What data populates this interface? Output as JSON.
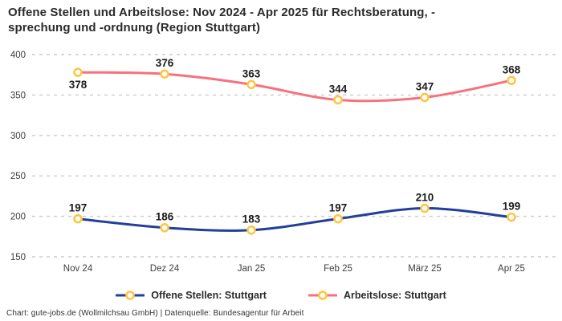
{
  "title": "Offene Stellen und Arbeitslose: Nov 2024 - Apr 2025 für Rechtsberatung, -\nsprechung und -ordnung (Region Stuttgart)",
  "footer": "Chart: gute-jobs.de (Wollmilchsau GmbH) | Datenquelle: Bundesagentur für Arbeit",
  "chart_data": {
    "type": "line",
    "title": "Offene Stellen und Arbeitslose: Nov 2024 - Apr 2025 für Rechtsberatung, -sprechung und -ordnung (Region Stuttgart)",
    "categories": [
      "Nov 24",
      "Dez 24",
      "Jan 25",
      "Feb 25",
      "März 25",
      "Apr 25"
    ],
    "series": [
      {
        "name": "Offene Stellen: Stuttgart",
        "color": "#22409a",
        "values": [
          197,
          186,
          183,
          197,
          210,
          199
        ],
        "label_below": [
          false,
          false,
          false,
          false,
          false,
          false
        ]
      },
      {
        "name": "Arbeitslose: Stuttgart",
        "color": "#f8707e",
        "values": [
          378,
          376,
          363,
          344,
          347,
          368
        ],
        "label_below": [
          true,
          false,
          false,
          false,
          false,
          false
        ]
      }
    ],
    "marker": {
      "fill": "#ffffff",
      "stroke": "#ffc540"
    },
    "yticks": [
      150,
      200,
      250,
      300,
      350,
      400
    ],
    "ylim": [
      150,
      400
    ],
    "grid": {
      "show": true,
      "color": "#cccccc",
      "dash": "4 5"
    },
    "legend_position": "bottom",
    "smooth": true,
    "xlabel": "",
    "ylabel": ""
  }
}
